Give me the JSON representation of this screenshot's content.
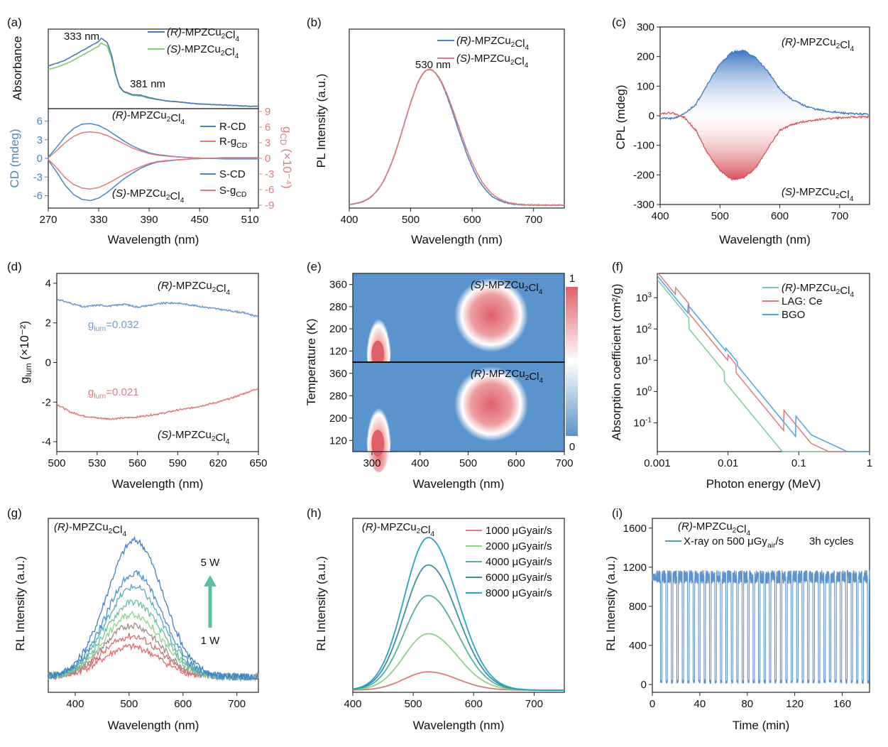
{
  "chart_data": [
    {
      "panel": "(a)",
      "type": "line",
      "ylabel": "Absorbance",
      "legend": [
        "(R)-MPZCu2Cl4",
        "(S)-MPZCu2Cl4"
      ],
      "annotations": [
        "333 nm",
        "381 nm"
      ],
      "colors": {
        "R": "#4a78c0",
        "S": "#7ecb6b"
      },
      "absorbance": {
        "x": [
          270,
          280,
          290,
          300,
          310,
          320,
          330,
          333,
          340,
          345,
          350,
          355,
          360,
          370,
          381,
          390,
          410,
          430,
          450,
          470,
          490,
          510,
          520
        ],
        "R": [
          0.55,
          0.58,
          0.62,
          0.68,
          0.74,
          0.8,
          0.86,
          0.9,
          0.85,
          0.7,
          0.45,
          0.28,
          0.22,
          0.18,
          0.17,
          0.14,
          0.1,
          0.08,
          0.06,
          0.05,
          0.04,
          0.03,
          0.03
        ],
        "S": [
          0.5,
          0.53,
          0.57,
          0.62,
          0.68,
          0.74,
          0.8,
          0.84,
          0.8,
          0.66,
          0.43,
          0.27,
          0.21,
          0.17,
          0.16,
          0.13,
          0.1,
          0.08,
          0.06,
          0.05,
          0.04,
          0.03,
          0.03
        ]
      },
      "cd": {
        "xlabel": "Wavelength (nm)",
        "ylabel_left": "CD (mdeg)",
        "ylabel_right": "gCD (×10⁻⁴)",
        "xlim": [
          270,
          520
        ],
        "ylim_left": [
          -8,
          8
        ],
        "ylim_right": [
          -9,
          9
        ],
        "xticks": [
          270,
          330,
          390,
          450,
          510
        ],
        "yticks_left": [
          -6,
          -3,
          0,
          3,
          6
        ],
        "yticks_right": [
          -9,
          -6,
          -3,
          0,
          3,
          6,
          9
        ],
        "labels": [
          "(R)-MPZCu2Cl4",
          "(S)-MPZCu2Cl4"
        ],
        "legend": [
          "R-CD",
          "R-gCD",
          "S-CD",
          "S-gCD"
        ],
        "x": [
          270,
          280,
          290,
          300,
          310,
          320,
          330,
          340,
          350,
          360,
          370,
          380,
          390,
          400,
          420,
          440,
          460,
          480,
          500,
          520
        ],
        "R_CD": [
          0.2,
          1.8,
          3.5,
          4.8,
          5.5,
          5.6,
          5.3,
          4.6,
          3.7,
          2.8,
          2.0,
          1.4,
          0.9,
          0.6,
          0.3,
          0.1,
          0.0,
          -0.1,
          -0.1,
          -0.1
        ],
        "R_g": [
          0.1,
          1.5,
          3.0,
          4.2,
          4.9,
          5.1,
          4.9,
          4.4,
          3.6,
          2.8,
          2.0,
          1.4,
          0.9,
          0.6,
          0.3,
          0.1,
          0.0,
          0.0,
          0.0,
          0.0
        ],
        "S_CD": [
          -0.3,
          -2.2,
          -4.3,
          -5.8,
          -6.6,
          -6.8,
          -6.4,
          -5.5,
          -4.4,
          -3.3,
          -2.4,
          -1.6,
          -1.0,
          -0.6,
          -0.3,
          -0.1,
          0.0,
          0.1,
          0.1,
          0.1
        ],
        "S_g": [
          -0.2,
          -1.8,
          -3.7,
          -5.0,
          -5.7,
          -5.9,
          -5.6,
          -4.9,
          -4.0,
          -3.1,
          -2.3,
          -1.6,
          -1.0,
          -0.6,
          -0.3,
          -0.1,
          0.0,
          0.0,
          0.0,
          0.0
        ]
      }
    },
    {
      "panel": "(b)",
      "type": "line",
      "xlabel": "Wavelength (nm)",
      "ylabel": "PL Intensity (a.u.)",
      "xlim": [
        400,
        750
      ],
      "xticks": [
        400,
        500,
        600,
        700
      ],
      "annotations": [
        "530 nm"
      ],
      "legend": [
        "(R)-MPZCu2Cl4",
        "(S)-MPZCu2Cl4"
      ],
      "peak": 530
    },
    {
      "panel": "(c)",
      "type": "area",
      "xlabel": "Wavelength (nm)",
      "ylabel": "CPL (mdeg)",
      "xlim": [
        400,
        750
      ],
      "ylim": [
        -300,
        300
      ],
      "xticks": [
        400,
        500,
        600,
        700
      ],
      "yticks": [
        -300,
        -200,
        -100,
        0,
        100,
        200,
        300
      ],
      "labels": [
        "(R)-MPZCu2Cl4",
        "(S)-MPZCu2Cl4"
      ],
      "x": [
        400,
        420,
        440,
        460,
        480,
        500,
        520,
        540,
        560,
        580,
        600,
        620,
        640,
        660,
        680,
        700,
        720,
        750
      ],
      "R": [
        -8,
        -10,
        5,
        40,
        110,
        175,
        215,
        220,
        195,
        150,
        90,
        55,
        35,
        22,
        15,
        10,
        7,
        5
      ],
      "S": [
        8,
        10,
        -5,
        -50,
        -130,
        -185,
        -215,
        -210,
        -175,
        -110,
        -50,
        -30,
        -20,
        -14,
        -10,
        -7,
        -5,
        -4
      ]
    },
    {
      "panel": "(d)",
      "type": "line",
      "xlabel": "Wavelength (nm)",
      "ylabel": "glum (×10⁻²)",
      "xlim": [
        500,
        650
      ],
      "ylim": [
        -4.5,
        4.5
      ],
      "xticks": [
        500,
        530,
        560,
        590,
        620,
        650
      ],
      "yticks": [
        -4,
        -2,
        0,
        2,
        4
      ],
      "labels": [
        "(R)-MPZCu2Cl4",
        "(S)-MPZCu2Cl4"
      ],
      "annotations": [
        "glum=0.032",
        "glum=0.021"
      ],
      "x": [
        500,
        510,
        520,
        530,
        540,
        550,
        560,
        570,
        580,
        590,
        600,
        610,
        620,
        630,
        640,
        650
      ],
      "R": [
        3.2,
        3.0,
        2.8,
        2.9,
        2.85,
        2.95,
        2.8,
        2.9,
        3.0,
        3.0,
        2.9,
        2.8,
        2.7,
        2.6,
        2.5,
        2.3
      ],
      "S": [
        -2.1,
        -2.5,
        -2.7,
        -2.8,
        -2.85,
        -2.8,
        -2.75,
        -2.65,
        -2.55,
        -2.4,
        -2.3,
        -2.15,
        -2.0,
        -1.8,
        -1.55,
        -1.3
      ]
    },
    {
      "panel": "(e)",
      "type": "heatmap",
      "xlabel": "Wavelength (nm)",
      "ylabel": "Temperature (K)",
      "xlim": [
        260,
        700
      ],
      "ylim": [
        80,
        400
      ],
      "xticks": [
        300,
        400,
        500,
        600,
        700
      ],
      "yticks": [
        120,
        200,
        280,
        360
      ],
      "labels": [
        "(S)-MPZCu2Cl4",
        "(R)-MPZCu2Cl4"
      ],
      "colorbar": {
        "min": 0,
        "max": 1
      }
    },
    {
      "panel": "(f)",
      "type": "line",
      "xlabel": "Photon energy (MeV)",
      "ylabel": "Absorption coefficient (cm²/g)",
      "xscale": "log",
      "yscale": "log",
      "xlim": [
        0.001,
        1
      ],
      "ylim": [
        0.012,
        6000
      ],
      "xticks": [
        0.001,
        0.01,
        0.1,
        1
      ],
      "ytick_exponents": [
        -1,
        0,
        1,
        2,
        3
      ],
      "legend": [
        "(R)-MPZCu2Cl4",
        "LAG: Ce",
        "BGO"
      ],
      "colors": {
        "MPZ": "#7ecb9b",
        "LAG": "#e07b7b",
        "BGO": "#4aa3e8"
      }
    },
    {
      "panel": "(g)",
      "type": "line",
      "xlabel": "Wavelength (nm)",
      "ylabel": "RL Intensity (a.u.)",
      "xlim": [
        350,
        740
      ],
      "xticks": [
        400,
        500,
        600,
        700
      ],
      "labels": [
        "(R)-MPZCu2Cl4"
      ],
      "annotations": [
        "5 W",
        "1 W"
      ],
      "peak": 510,
      "relative_amplitudes": [
        0.22,
        0.3,
        0.38,
        0.46,
        0.55,
        0.66,
        0.76,
        1.0
      ]
    },
    {
      "panel": "(h)",
      "type": "line",
      "xlabel": "Wavelength (nm)",
      "ylabel": "RL Intensity (a.u.)",
      "xlim": [
        400,
        750
      ],
      "xticks": [
        400,
        500,
        600,
        700
      ],
      "labels": [
        "(R)-MPZCu2Cl4"
      ],
      "peak": 525,
      "series": [
        {
          "name": "1000 μGyair/s",
          "value": 0.12,
          "color": "#e07b7b"
        },
        {
          "name": "2000 μGyair/s",
          "value": 0.37,
          "color": "#8fd08a"
        },
        {
          "name": "4000 μGyair/s",
          "value": 0.62,
          "color": "#52b39a"
        },
        {
          "name": "6000 μGyair/s",
          "value": 0.82,
          "color": "#3b8fa6"
        },
        {
          "name": "8000 μGyair/s",
          "value": 1.0,
          "color": "#2aa2c6"
        }
      ]
    },
    {
      "panel": "(i)",
      "type": "line",
      "xlabel": "Time (min)",
      "ylabel": "RL Intensity (a.u.)",
      "xlim": [
        0,
        183
      ],
      "ylim": [
        -80,
        1700
      ],
      "xticks": [
        0,
        40,
        80,
        120,
        160
      ],
      "yticks": [
        0,
        400,
        800,
        1200,
        1600
      ],
      "labels": [
        "(R)-MPZCu2Cl4",
        "3h cycles"
      ],
      "legend": [
        "X-ray on 500 μGyair/s"
      ],
      "on_level": 1100,
      "off_level": 30,
      "cycles": 39
    }
  ]
}
